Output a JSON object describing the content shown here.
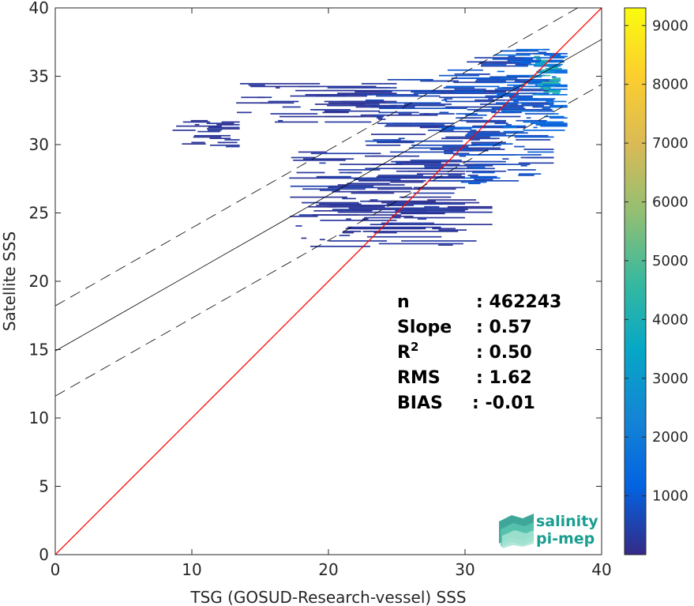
{
  "chart_data": {
    "type": "heatmap",
    "title": "",
    "xlabel": "TSG (GOSUD-Research-vessel) SSS",
    "ylabel": "Satellite SSS",
    "xlim": [
      0,
      40
    ],
    "ylim": [
      0,
      40
    ],
    "xticks": [
      "0",
      "10",
      "20",
      "30",
      "40"
    ],
    "yticks": [
      "0",
      "5",
      "10",
      "15",
      "20",
      "25",
      "30",
      "35",
      "40"
    ],
    "grid": false,
    "colormap": "parula",
    "colorbar": {
      "range": [
        0,
        9300
      ],
      "ticks": [
        "1000",
        "2000",
        "3000",
        "4000",
        "5000",
        "6000",
        "7000",
        "8000",
        "9000"
      ]
    },
    "identity_line": {
      "from": [
        0,
        0
      ],
      "to": [
        40,
        40
      ],
      "color": "#ff0000"
    },
    "regression": {
      "intercept": 14.9,
      "slope": 0.57,
      "band_offset": 3.3,
      "color": "#000000"
    },
    "density_regions": [
      {
        "x": [
          8.5,
          13.5
        ],
        "y": [
          29.8,
          31.8
        ],
        "count": 300
      },
      {
        "x": [
          13,
          25
        ],
        "y": [
          31.5,
          34.5
        ],
        "count": 300
      },
      {
        "x": [
          17,
          30
        ],
        "y": [
          24,
          29.5
        ],
        "count": 400
      },
      {
        "x": [
          18,
          32
        ],
        "y": [
          22.5,
          26
        ],
        "count": 300
      },
      {
        "x": [
          22,
          33
        ],
        "y": [
          28,
          35
        ],
        "count": 600
      },
      {
        "x": [
          28,
          36.5
        ],
        "y": [
          27,
          36.5
        ],
        "count": 900
      },
      {
        "x": [
          32,
          37.5
        ],
        "y": [
          31,
          37
        ],
        "count": 1500
      },
      {
        "x": [
          34.5,
          37
        ],
        "y": [
          33.5,
          36.5
        ],
        "count": 4000
      }
    ]
  },
  "stats": {
    "rows": [
      {
        "label": "n",
        "value": ": 462243"
      },
      {
        "label": "Slope",
        "value": ": 0.57"
      },
      {
        "label": "R",
        "sup": "2",
        "value": ": 0.50"
      },
      {
        "label": "RMS",
        "value": ": 1.62"
      },
      {
        "label": "BIAS",
        "value": ": -0.01"
      }
    ]
  },
  "logo": {
    "line1": "salinity",
    "line2": "pi-mep"
  },
  "colors": {
    "identity": "#ff0000",
    "regression": "#000000",
    "logo_text": "#1a9e8f",
    "axis": "#262626"
  }
}
